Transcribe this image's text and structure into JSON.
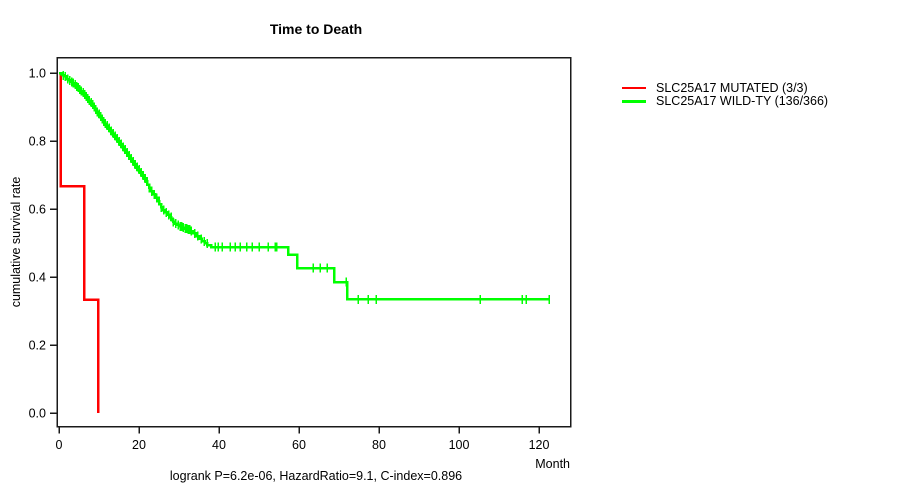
{
  "title": "Time to Death",
  "y_axis_label": "cumulative survival rate",
  "x_axis_label": "Month",
  "footer": "logrank P=6.2e-06, HazardRatio=9.1, C-index=0.896",
  "colors": {
    "mutated": "#ff0000",
    "wildtype": "#00ff00",
    "axis": "#1a1a1a",
    "background": "#ffffff"
  },
  "legend": [
    {
      "label": "SLC25A17 MUTATED (3/3)",
      "color": "#ff0000"
    },
    {
      "label": "SLC25A17 WILD-TY (136/366)",
      "color": "#00ff00"
    }
  ],
  "chart_data": {
    "type": "line",
    "subtype": "kaplan-meier-step",
    "title": "Time to Death",
    "xlabel": "Month",
    "ylabel": "cumulative survival rate",
    "annotation": "logrank P=6.2e-06, HazardRatio=9.1, C-index=0.896",
    "legend_position": "right-outside",
    "grid": false,
    "xlim": [
      0,
      128
    ],
    "ylim": [
      0.0,
      1.0
    ],
    "x_ticks": [
      {
        "v": 0,
        "label": "0"
      },
      {
        "v": 20,
        "label": "20"
      },
      {
        "v": 40,
        "label": "40"
      },
      {
        "v": 60,
        "label": "60"
      },
      {
        "v": 80,
        "label": "80"
      },
      {
        "v": 100,
        "label": "100"
      },
      {
        "v": 120,
        "label": "120"
      }
    ],
    "y_ticks": [
      {
        "v": 0.0,
        "label": "0.0"
      },
      {
        "v": 0.2,
        "label": "0.2"
      },
      {
        "v": 0.4,
        "label": "0.4"
      },
      {
        "v": 0.6,
        "label": "0.6"
      },
      {
        "v": 0.8,
        "label": "0.8"
      },
      {
        "v": 1.0,
        "label": "1.0"
      }
    ],
    "series": [
      {
        "name": "SLC25A17 MUTATED (3/3)",
        "color": "#ff0000",
        "end_month": 9.75,
        "steps": [
          [
            0,
            1.0
          ],
          [
            0.4,
            0.667
          ],
          [
            6.3,
            0.333
          ],
          [
            9.75,
            0.0
          ]
        ],
        "censors": []
      },
      {
        "name": "SLC25A17 WILD-TY (136/366)",
        "color": "#00ff00",
        "end_month": 122.8,
        "steps": [
          [
            0,
            1.0
          ],
          [
            0.5,
            0.997
          ],
          [
            0.9,
            0.993
          ],
          [
            1.3,
            0.99
          ],
          [
            1.7,
            0.986
          ],
          [
            2.1,
            0.982
          ],
          [
            2.5,
            0.978
          ],
          [
            2.9,
            0.974
          ],
          [
            3.3,
            0.97
          ],
          [
            3.7,
            0.966
          ],
          [
            4.1,
            0.961
          ],
          [
            4.5,
            0.957
          ],
          [
            4.9,
            0.952
          ],
          [
            5.3,
            0.947
          ],
          [
            5.7,
            0.942
          ],
          [
            6.1,
            0.937
          ],
          [
            6.5,
            0.931
          ],
          [
            6.9,
            0.925
          ],
          [
            7.3,
            0.919
          ],
          [
            7.7,
            0.913
          ],
          [
            8.1,
            0.907
          ],
          [
            8.5,
            0.9
          ],
          [
            8.9,
            0.893
          ],
          [
            9.3,
            0.886
          ],
          [
            9.7,
            0.879
          ],
          [
            10.1,
            0.872
          ],
          [
            10.5,
            0.865
          ],
          [
            10.9,
            0.858
          ],
          [
            11.3,
            0.851
          ],
          [
            11.7,
            0.845
          ],
          [
            12.1,
            0.838
          ],
          [
            12.6,
            0.83
          ],
          [
            13.1,
            0.822
          ],
          [
            13.6,
            0.815
          ],
          [
            14.1,
            0.807
          ],
          [
            14.6,
            0.799
          ],
          [
            15.1,
            0.791
          ],
          [
            15.6,
            0.783
          ],
          [
            16.1,
            0.775
          ],
          [
            16.6,
            0.766
          ],
          [
            17.1,
            0.757
          ],
          [
            17.6,
            0.748
          ],
          [
            18.1,
            0.74
          ],
          [
            18.6,
            0.731
          ],
          [
            19.1,
            0.723
          ],
          [
            19.6,
            0.716
          ],
          [
            20.1,
            0.708
          ],
          [
            20.6,
            0.699
          ],
          [
            21.1,
            0.69
          ],
          [
            21.6,
            0.681
          ],
          [
            22.1,
            0.672
          ],
          [
            22.6,
            0.662
          ],
          [
            23.1,
            0.652
          ],
          [
            23.6,
            0.643
          ],
          [
            24.1,
            0.633
          ],
          [
            24.6,
            0.623
          ],
          [
            25.1,
            0.614
          ],
          [
            25.6,
            0.605
          ],
          [
            26.1,
            0.597
          ],
          [
            26.6,
            0.59
          ],
          [
            27.1,
            0.583
          ],
          [
            27.6,
            0.576
          ],
          [
            28.1,
            0.569
          ],
          [
            28.6,
            0.562
          ],
          [
            29.1,
            0.557
          ],
          [
            29.6,
            0.553
          ],
          [
            30.1,
            0.549
          ],
          [
            30.8,
            0.545
          ],
          [
            31.5,
            0.542
          ],
          [
            32.2,
            0.539
          ],
          [
            32.9,
            0.535
          ],
          [
            33.6,
            0.528
          ],
          [
            34.3,
            0.52
          ],
          [
            35,
            0.512
          ],
          [
            35.7,
            0.505
          ],
          [
            36.4,
            0.499
          ],
          [
            37.1,
            0.493
          ],
          [
            38,
            0.488
          ],
          [
            57.3,
            0.465
          ],
          [
            59.5,
            0.426
          ],
          [
            68.8,
            0.385
          ],
          [
            72,
            0.334
          ]
        ],
        "censors": [
          1.0,
          1.6,
          2.2,
          2.7,
          3.2,
          3.6,
          4.0,
          4.4,
          4.8,
          5.2,
          5.6,
          6.0,
          6.4,
          6.8,
          7.2,
          7.6,
          8.0,
          8.4,
          8.8,
          9.2,
          9.6,
          10.0,
          10.4,
          10.8,
          11.2,
          11.6,
          12.0,
          12.5,
          13.0,
          13.5,
          14.0,
          14.5,
          15.0,
          15.5,
          16.0,
          16.5,
          17.0,
          17.5,
          18.0,
          18.5,
          19.0,
          19.5,
          20.0,
          20.5,
          21.0,
          21.5,
          22.0,
          22.6,
          23.2,
          23.8,
          24.4,
          25.0,
          25.6,
          26.2,
          26.8,
          27.4,
          28.0,
          28.6,
          29.2,
          29.8,
          30.3,
          30.7,
          31.1,
          31.5,
          31.9,
          32.3,
          32.7,
          33.1,
          33.9,
          34.7,
          35.5,
          36.3,
          37.0,
          39.0,
          39.8,
          40.8,
          42.8,
          44.0,
          45.3,
          46.9,
          48.3,
          50.1,
          52.3,
          54.0,
          54.4,
          63.5,
          65.3,
          67.0,
          71.8,
          74.8,
          77.3,
          79.3,
          105.3,
          115.8,
          116.8,
          122.5
        ]
      }
    ]
  }
}
